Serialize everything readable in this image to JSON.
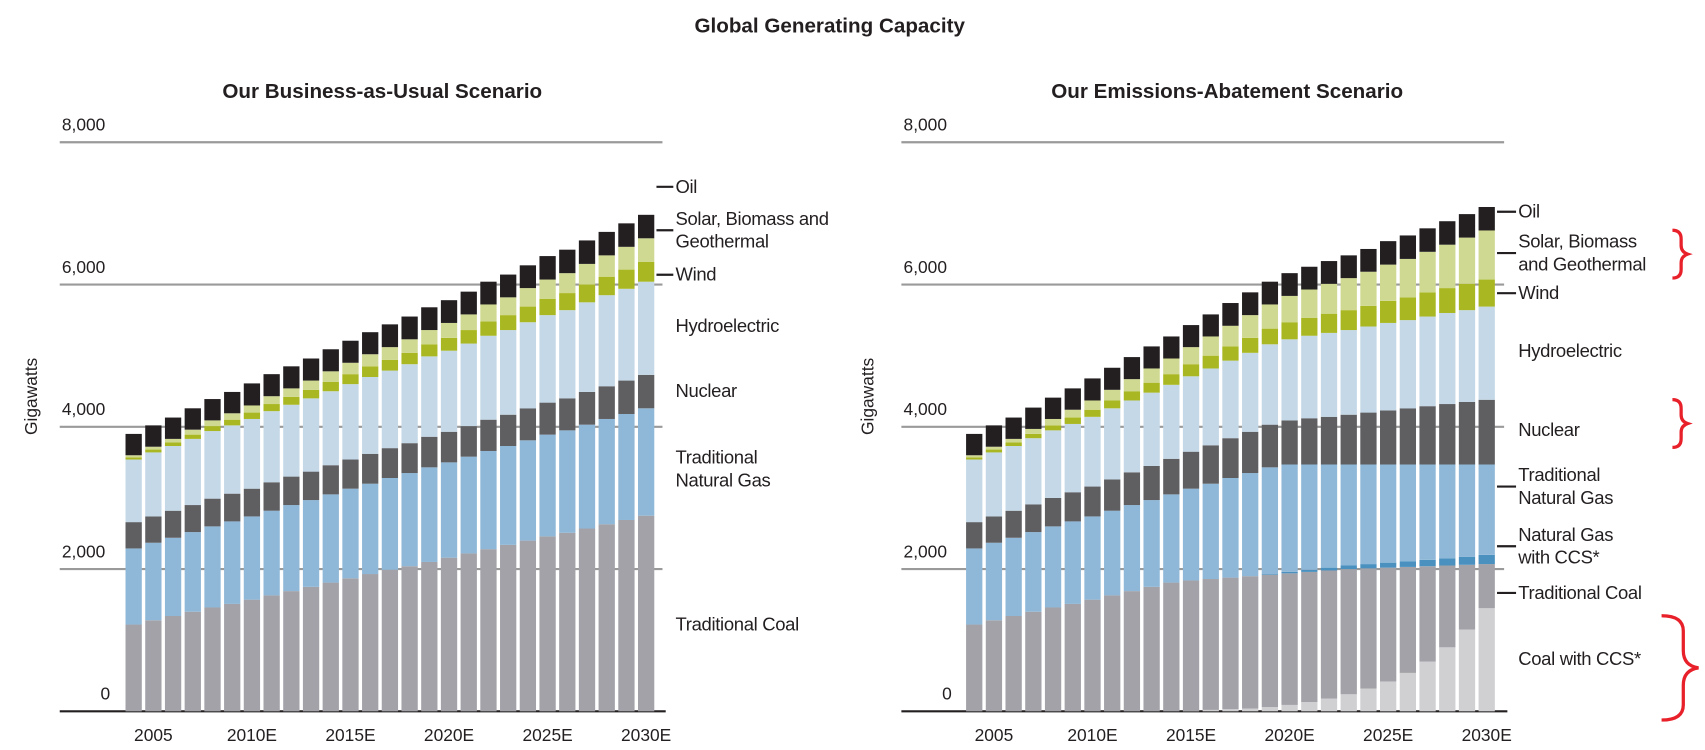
{
  "title": "Global Generating Capacity",
  "chart_data": [
    {
      "type": "bar",
      "stacked": true,
      "title": "Our Business-as-Usual Scenario",
      "ylabel": "Gigawatts",
      "categories": [
        null,
        "2005",
        null,
        null,
        null,
        null,
        "2010E",
        null,
        null,
        null,
        null,
        "2015E",
        null,
        null,
        null,
        null,
        "2020E",
        null,
        null,
        null,
        null,
        "2025E",
        null,
        null,
        null,
        null,
        "2030E"
      ],
      "ylim": [
        0,
        8000
      ],
      "yticks": [
        0,
        {
          "value": 2000,
          "label": "2,000"
        },
        {
          "value": 4000,
          "label": "4,000"
        },
        {
          "value": 6000,
          "label": "6,000"
        },
        {
          "value": 8000,
          "label": "8,000"
        }
      ],
      "series": [
        {
          "name": "Traditional Coal",
          "color": "#a2a2a8",
          "values": [
            1220,
            1280,
            1340,
            1400,
            1460,
            1510,
            1570,
            1630,
            1690,
            1750,
            1810,
            1870,
            1930,
            1990,
            2040,
            2100,
            2160,
            2220,
            2280,
            2340,
            2400,
            2460,
            2510,
            2570,
            2630,
            2690,
            2750
          ]
        },
        {
          "name": "Traditional Natural Gas",
          "color": "#8fb8d8",
          "values": [
            1070,
            1090,
            1100,
            1120,
            1140,
            1160,
            1170,
            1190,
            1210,
            1220,
            1240,
            1260,
            1270,
            1290,
            1310,
            1330,
            1340,
            1360,
            1380,
            1390,
            1410,
            1430,
            1440,
            1460,
            1480,
            1490,
            1510
          ]
        },
        {
          "name": "Nuclear",
          "color": "#5f5f62",
          "values": [
            370,
            370,
            380,
            380,
            390,
            390,
            390,
            400,
            400,
            400,
            410,
            410,
            420,
            420,
            420,
            430,
            430,
            430,
            440,
            440,
            450,
            450,
            450,
            460,
            460,
            470,
            470
          ]
        },
        {
          "name": "Hydroelectric",
          "color": "#c4d8e7",
          "values": [
            880,
            900,
            910,
            930,
            950,
            960,
            980,
            1000,
            1010,
            1030,
            1040,
            1060,
            1080,
            1090,
            1110,
            1130,
            1140,
            1160,
            1180,
            1190,
            1210,
            1230,
            1240,
            1260,
            1280,
            1290,
            1310
          ]
        },
        {
          "name": "Wind",
          "color": "#a9b822",
          "values": [
            30,
            40,
            50,
            60,
            70,
            80,
            90,
            100,
            110,
            120,
            130,
            140,
            150,
            150,
            160,
            170,
            180,
            190,
            200,
            210,
            220,
            230,
            240,
            250,
            260,
            270,
            280
          ]
        },
        {
          "name": "Solar, Biomass and Geothermal",
          "color": "#d0d991",
          "values": [
            30,
            40,
            50,
            70,
            80,
            90,
            100,
            110,
            120,
            130,
            150,
            160,
            170,
            180,
            190,
            200,
            210,
            220,
            240,
            250,
            260,
            270,
            280,
            290,
            300,
            320,
            330
          ]
        },
        {
          "name": "Oil",
          "color": "#231f20",
          "values": [
            300,
            300,
            300,
            300,
            300,
            300,
            310,
            310,
            310,
            310,
            310,
            310,
            310,
            320,
            320,
            320,
            320,
            320,
            320,
            320,
            320,
            330,
            330,
            330,
            330,
            330,
            330
          ]
        }
      ]
    },
    {
      "type": "bar",
      "stacked": true,
      "title": "Our Emissions-Abatement Scenario",
      "ylabel": "Gigawatts",
      "categories": [
        null,
        "2005",
        null,
        null,
        null,
        null,
        "2010E",
        null,
        null,
        null,
        null,
        "2015E",
        null,
        null,
        null,
        null,
        "2020E",
        null,
        null,
        null,
        null,
        "2025E",
        null,
        null,
        null,
        null,
        "2030E"
      ],
      "ylim": [
        0,
        8000
      ],
      "yticks": [
        0,
        {
          "value": 2000,
          "label": "2,000"
        },
        {
          "value": 4000,
          "label": "4,000"
        },
        {
          "value": 6000,
          "label": "6,000"
        },
        {
          "value": 8000,
          "label": "8,000"
        }
      ],
      "series": [
        {
          "name": "Coal with CCS*",
          "color": "#d0d0d3",
          "values": [
            0,
            0,
            0,
            0,
            0,
            0,
            0,
            0,
            0,
            0,
            0,
            10,
            20,
            30,
            40,
            60,
            90,
            130,
            180,
            240,
            320,
            420,
            540,
            700,
            900,
            1150,
            1450
          ]
        },
        {
          "name": "Traditional Coal",
          "color": "#a2a2a8",
          "values": [
            1220,
            1280,
            1340,
            1400,
            1460,
            1510,
            1570,
            1630,
            1690,
            1750,
            1810,
            1830,
            1840,
            1850,
            1860,
            1860,
            1850,
            1830,
            1800,
            1760,
            1690,
            1600,
            1490,
            1340,
            1150,
            910,
            620
          ]
        },
        {
          "name": "Natural Gas with CCS*",
          "color": "#4a91c0",
          "values": [
            0,
            0,
            0,
            0,
            0,
            0,
            0,
            0,
            0,
            0,
            0,
            0,
            0,
            0,
            0,
            10,
            20,
            30,
            40,
            50,
            60,
            70,
            80,
            90,
            100,
            110,
            130
          ]
        },
        {
          "name": "Traditional Natural Gas",
          "color": "#8fb8d8",
          "values": [
            1070,
            1090,
            1100,
            1120,
            1140,
            1160,
            1170,
            1190,
            1210,
            1220,
            1240,
            1290,
            1340,
            1400,
            1450,
            1500,
            1510,
            1480,
            1450,
            1420,
            1400,
            1380,
            1360,
            1340,
            1320,
            1300,
            1270
          ]
        },
        {
          "name": "Nuclear",
          "color": "#5f5f62",
          "values": [
            370,
            370,
            380,
            390,
            400,
            410,
            420,
            440,
            460,
            480,
            500,
            520,
            540,
            560,
            580,
            600,
            620,
            650,
            670,
            700,
            730,
            760,
            790,
            820,
            850,
            880,
            910
          ]
        },
        {
          "name": "Hydroelectric",
          "color": "#c4d8e7",
          "values": [
            880,
            900,
            910,
            930,
            950,
            960,
            980,
            1000,
            1010,
            1030,
            1040,
            1060,
            1080,
            1090,
            1110,
            1130,
            1140,
            1160,
            1180,
            1190,
            1210,
            1230,
            1240,
            1260,
            1280,
            1290,
            1310
          ]
        },
        {
          "name": "Wind",
          "color": "#a9b822",
          "values": [
            30,
            40,
            50,
            60,
            70,
            90,
            100,
            110,
            130,
            140,
            150,
            170,
            180,
            200,
            210,
            220,
            240,
            250,
            270,
            280,
            290,
            310,
            320,
            340,
            350,
            370,
            380
          ]
        },
        {
          "name": "Solar, Biomass and Geothermal",
          "color": "#d0d991",
          "values": [
            30,
            40,
            50,
            70,
            90,
            110,
            130,
            150,
            170,
            200,
            220,
            240,
            270,
            290,
            320,
            340,
            370,
            400,
            420,
            450,
            480,
            510,
            540,
            570,
            610,
            650,
            690
          ]
        },
        {
          "name": "Oil",
          "color": "#231f20",
          "values": [
            300,
            300,
            300,
            300,
            300,
            300,
            310,
            310,
            310,
            310,
            310,
            310,
            310,
            320,
            320,
            320,
            320,
            320,
            320,
            320,
            320,
            330,
            330,
            330,
            330,
            330,
            330
          ]
        }
      ]
    }
  ]
}
